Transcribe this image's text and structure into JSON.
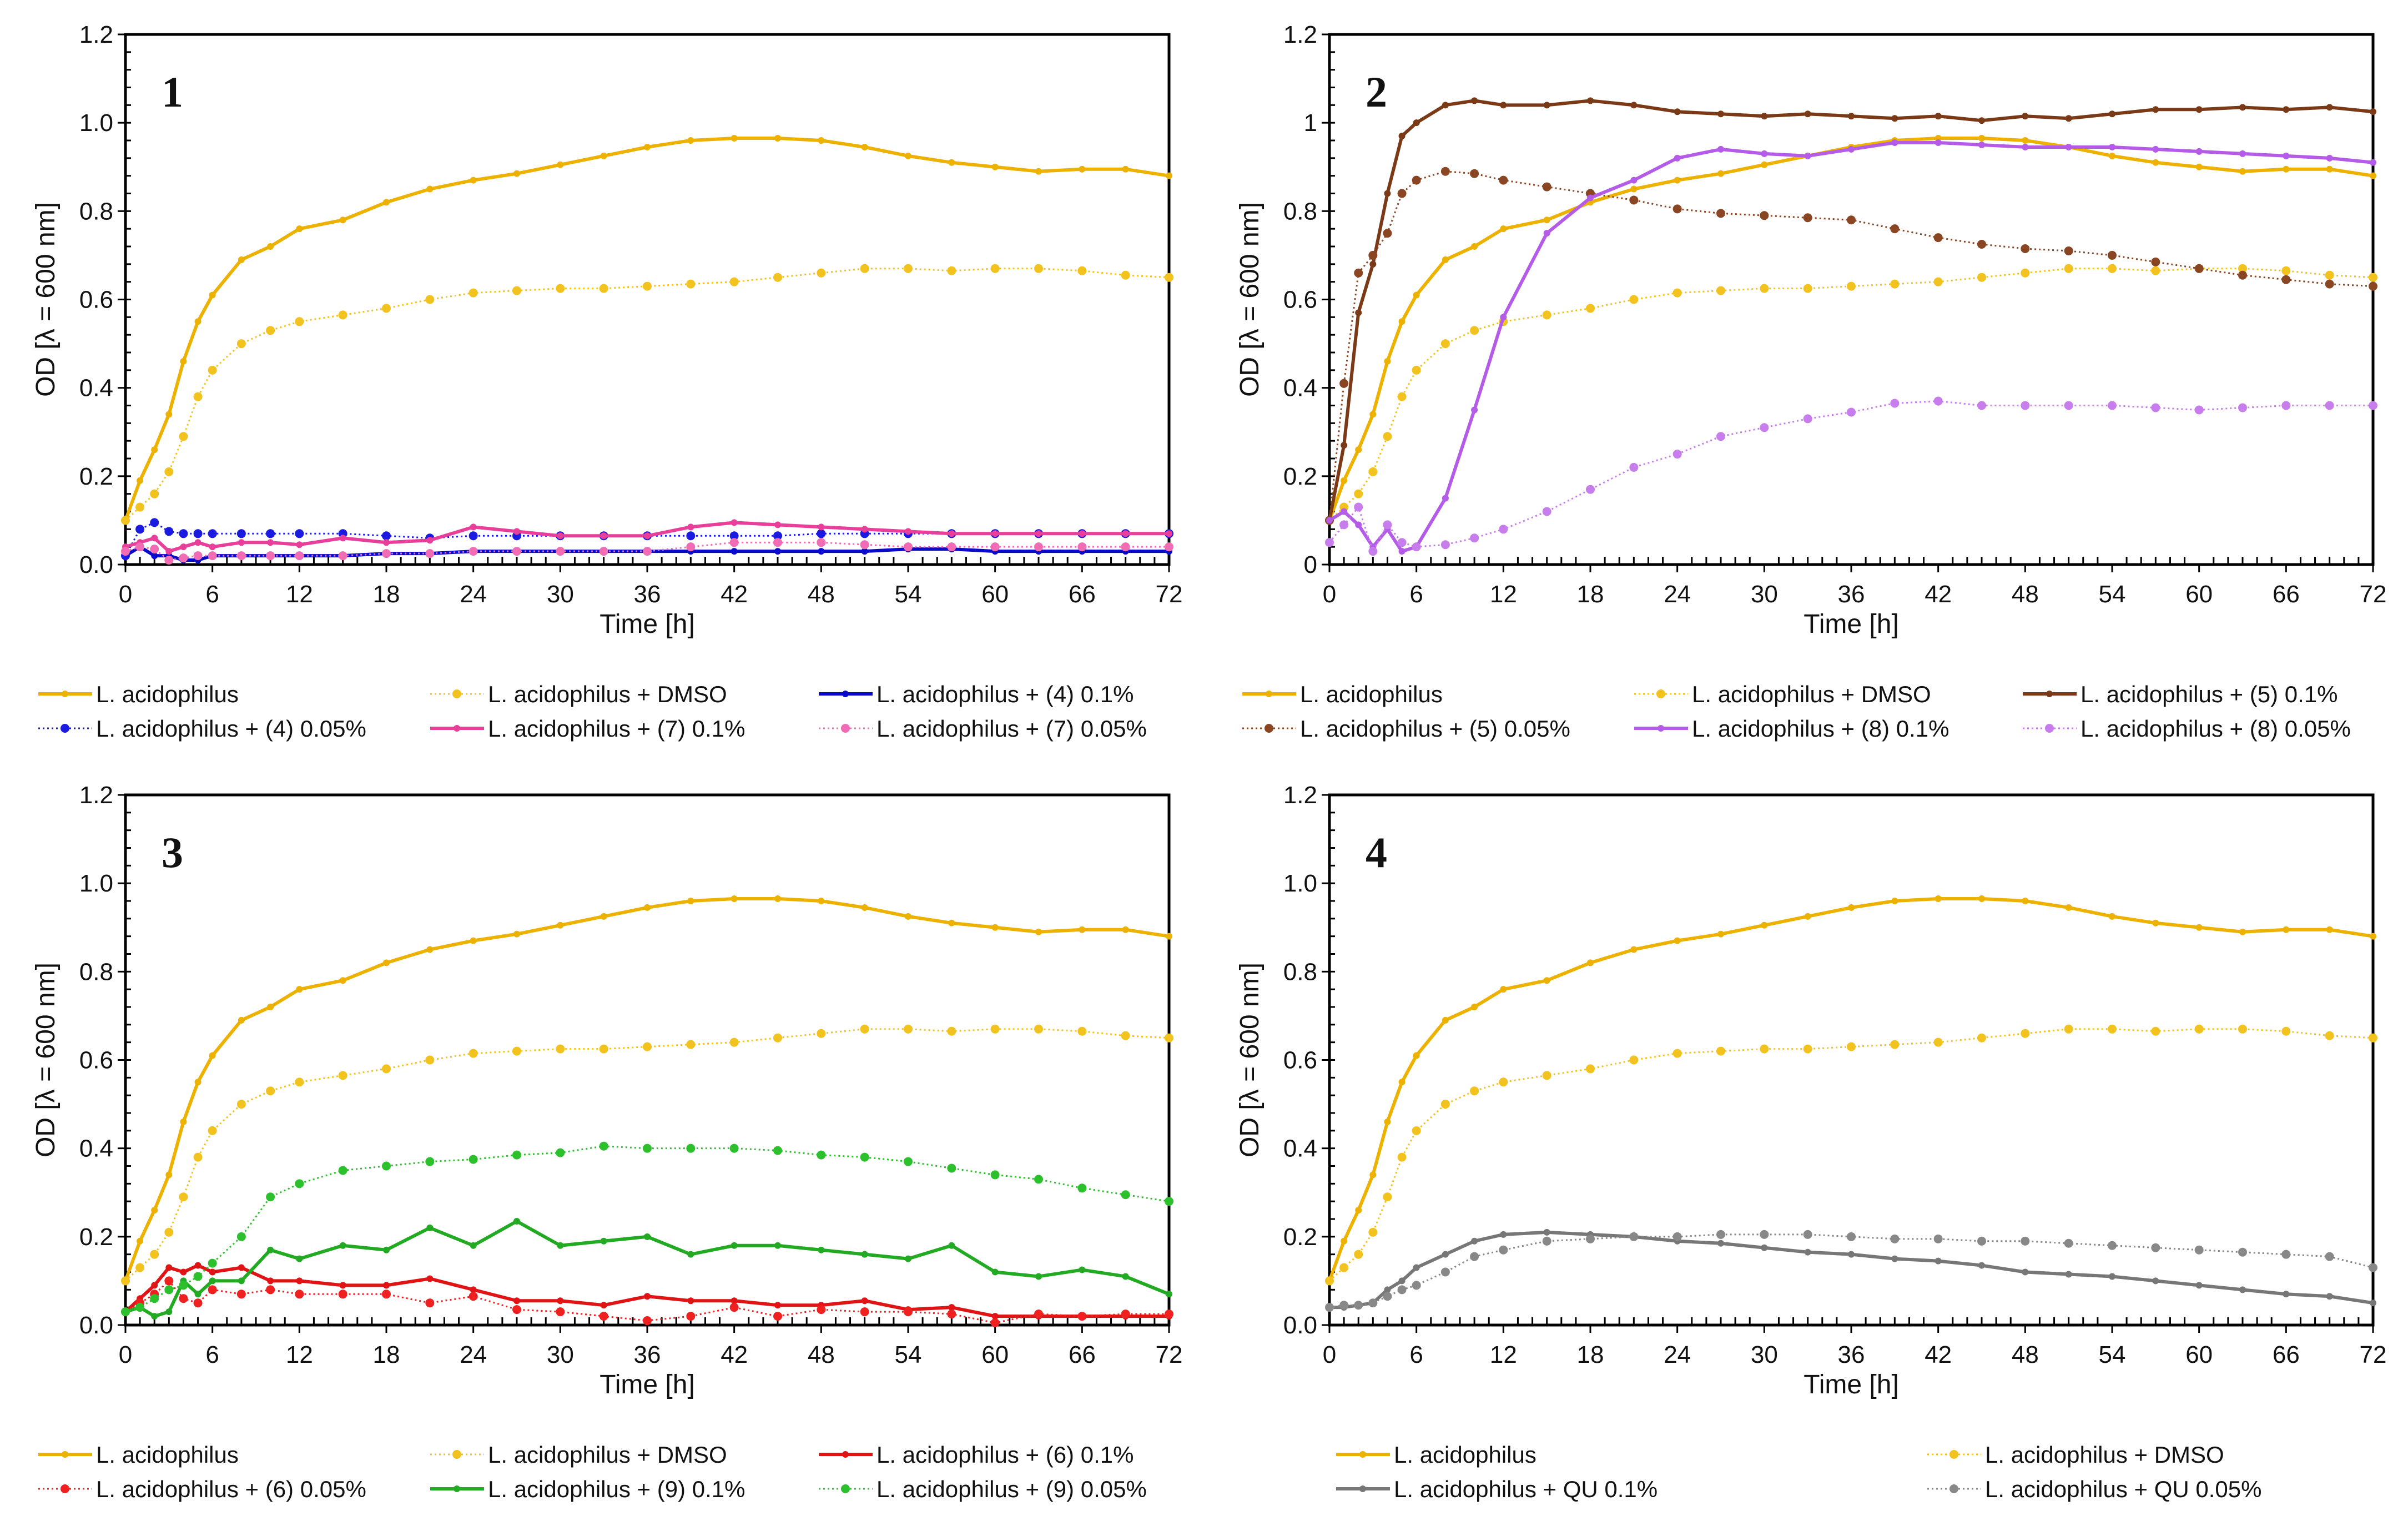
{
  "chart_data": [
    {
      "panel_label": "1",
      "type": "line",
      "xlabel": "Time [h]",
      "ylabel": "OD  [λ = 600 nm]",
      "xlim": [
        0,
        72
      ],
      "ylim": [
        0,
        1.2
      ],
      "xticks": [
        "0",
        "6",
        "12",
        "18",
        "24",
        "30",
        "36",
        "42",
        "48",
        "54",
        "60",
        "66",
        "72"
      ],
      "yticks": [
        "0.0",
        "0.2",
        "0.4",
        "0.6",
        "0.8",
        "1.0",
        "1.2"
      ],
      "legend_columns": 3,
      "legend_placement": "bottom",
      "x": [
        0,
        1,
        2,
        3,
        4,
        5,
        6,
        8,
        10,
        12,
        15,
        18,
        21,
        24,
        27,
        30,
        33,
        36,
        39,
        42,
        45,
        48,
        51,
        54,
        57,
        60,
        63,
        66,
        69,
        72
      ],
      "series": [
        {
          "name": "L. acidophilus",
          "color": "#EDB100",
          "style": "solid",
          "values": [
            0.1,
            0.19,
            0.26,
            0.34,
            0.46,
            0.55,
            0.61,
            0.69,
            0.72,
            0.76,
            0.78,
            0.82,
            0.85,
            0.87,
            0.885,
            0.905,
            0.925,
            0.945,
            0.96,
            0.965,
            0.965,
            0.96,
            0.945,
            0.925,
            0.91,
            0.9,
            0.89,
            0.895,
            0.895,
            0.88
          ]
        },
        {
          "name": "L. acidophilus + DMSO",
          "color": "#F2C21E",
          "style": "dotted",
          "values": [
            0.1,
            0.13,
            0.16,
            0.21,
            0.29,
            0.38,
            0.44,
            0.5,
            0.53,
            0.55,
            0.565,
            0.58,
            0.6,
            0.615,
            0.62,
            0.625,
            0.625,
            0.63,
            0.635,
            0.64,
            0.65,
            0.66,
            0.67,
            0.67,
            0.665,
            0.67,
            0.67,
            0.665,
            0.655,
            0.65
          ]
        },
        {
          "name": "L. acidophilus + (4) 0.1%",
          "color": "#0A0ACC",
          "style": "solid",
          "values": [
            0.02,
            0.04,
            0.02,
            0.02,
            0.01,
            0.01,
            0.02,
            0.02,
            0.02,
            0.02,
            0.02,
            0.025,
            0.025,
            0.03,
            0.03,
            0.03,
            0.03,
            0.03,
            0.03,
            0.03,
            0.03,
            0.03,
            0.03,
            0.035,
            0.035,
            0.03,
            0.03,
            0.03,
            0.03,
            0.03
          ]
        },
        {
          "name": "L. acidophilus + (4) 0.05%",
          "color": "#1A1AE0",
          "style": "dotted",
          "values": [
            0.02,
            0.08,
            0.095,
            0.075,
            0.07,
            0.07,
            0.07,
            0.07,
            0.07,
            0.07,
            0.07,
            0.065,
            0.06,
            0.065,
            0.065,
            0.065,
            0.065,
            0.065,
            0.065,
            0.065,
            0.065,
            0.07,
            0.07,
            0.07,
            0.07,
            0.07,
            0.07,
            0.07,
            0.07,
            0.07
          ]
        },
        {
          "name": "L. acidophilus + (7) 0.1%",
          "color": "#E8409A",
          "style": "solid",
          "values": [
            0.04,
            0.05,
            0.06,
            0.03,
            0.04,
            0.05,
            0.04,
            0.05,
            0.05,
            0.045,
            0.06,
            0.05,
            0.055,
            0.085,
            0.075,
            0.065,
            0.065,
            0.065,
            0.085,
            0.095,
            0.09,
            0.085,
            0.08,
            0.075,
            0.07,
            0.07,
            0.07,
            0.07,
            0.07,
            0.07
          ]
        },
        {
          "name": "L. acidophilus + (7) 0.05%",
          "color": "#F06CB4",
          "style": "dotted",
          "values": [
            0.03,
            0.04,
            0.035,
            0.01,
            0.015,
            0.02,
            0.02,
            0.02,
            0.02,
            0.02,
            0.02,
            0.025,
            0.025,
            0.03,
            0.03,
            0.03,
            0.03,
            0.03,
            0.04,
            0.05,
            0.05,
            0.05,
            0.045,
            0.04,
            0.04,
            0.04,
            0.04,
            0.04,
            0.04,
            0.04
          ]
        }
      ]
    },
    {
      "panel_label": "2",
      "type": "line",
      "xlabel": "Time [h]",
      "ylabel": "OD  [λ = 600 nm]",
      "xlim": [
        0,
        72
      ],
      "ylim": [
        0,
        1.2
      ],
      "xticks": [
        "0",
        "6",
        "12",
        "18",
        "24",
        "30",
        "36",
        "42",
        "48",
        "54",
        "60",
        "66",
        "72"
      ],
      "yticks": [
        "0",
        "0.2",
        "0.4",
        "0.6",
        "0.8",
        "1",
        "1.2"
      ],
      "legend_columns": 3,
      "legend_placement": "bottom",
      "x": [
        0,
        1,
        2,
        3,
        4,
        5,
        6,
        8,
        10,
        12,
        15,
        18,
        21,
        24,
        27,
        30,
        33,
        36,
        39,
        42,
        45,
        48,
        51,
        54,
        57,
        60,
        63,
        66,
        69,
        72
      ],
      "series": [
        {
          "name": "L. acidophilus",
          "color": "#EDB100",
          "style": "solid",
          "values": [
            0.1,
            0.19,
            0.26,
            0.34,
            0.46,
            0.55,
            0.61,
            0.69,
            0.72,
            0.76,
            0.78,
            0.82,
            0.85,
            0.87,
            0.885,
            0.905,
            0.925,
            0.945,
            0.96,
            0.965,
            0.965,
            0.96,
            0.945,
            0.925,
            0.91,
            0.9,
            0.89,
            0.895,
            0.895,
            0.88
          ]
        },
        {
          "name": "L. acidophilus + DMSO",
          "color": "#F2C21E",
          "style": "dotted",
          "values": [
            0.1,
            0.13,
            0.16,
            0.21,
            0.29,
            0.38,
            0.44,
            0.5,
            0.53,
            0.55,
            0.565,
            0.58,
            0.6,
            0.615,
            0.62,
            0.625,
            0.625,
            0.63,
            0.635,
            0.64,
            0.65,
            0.66,
            0.67,
            0.67,
            0.665,
            0.67,
            0.67,
            0.665,
            0.655,
            0.65
          ]
        },
        {
          "name": "L. acidophilus + (5) 0.1%",
          "color": "#7B3A17",
          "style": "solid",
          "values": [
            0.1,
            0.27,
            0.57,
            0.68,
            0.84,
            0.97,
            1.0,
            1.04,
            1.05,
            1.04,
            1.04,
            1.05,
            1.04,
            1.025,
            1.02,
            1.015,
            1.02,
            1.015,
            1.01,
            1.015,
            1.005,
            1.015,
            1.01,
            1.02,
            1.03,
            1.03,
            1.035,
            1.03,
            1.035,
            1.025
          ]
        },
        {
          "name": "L. acidophilus + (5) 0.05%",
          "color": "#8A4522",
          "style": "dotted",
          "values": [
            0.1,
            0.41,
            0.66,
            0.7,
            0.75,
            0.84,
            0.87,
            0.89,
            0.885,
            0.87,
            0.855,
            0.84,
            0.825,
            0.805,
            0.795,
            0.79,
            0.785,
            0.78,
            0.76,
            0.74,
            0.725,
            0.715,
            0.71,
            0.7,
            0.685,
            0.67,
            0.655,
            0.645,
            0.635,
            0.63
          ]
        },
        {
          "name": "L. acidophilus + (8) 0.1%",
          "color": "#B45CE8",
          "style": "solid",
          "values": [
            0.1,
            0.12,
            0.09,
            0.04,
            0.08,
            0.03,
            0.04,
            0.15,
            0.35,
            0.56,
            0.75,
            0.83,
            0.87,
            0.92,
            0.94,
            0.93,
            0.925,
            0.94,
            0.955,
            0.955,
            0.95,
            0.945,
            0.945,
            0.945,
            0.94,
            0.935,
            0.93,
            0.925,
            0.92,
            0.91
          ]
        },
        {
          "name": "L. acidophilus + (8) 0.05%",
          "color": "#C77DEB",
          "style": "dotted",
          "values": [
            0.05,
            0.09,
            0.13,
            0.03,
            0.09,
            0.05,
            0.04,
            0.045,
            0.06,
            0.08,
            0.12,
            0.17,
            0.22,
            0.25,
            0.29,
            0.31,
            0.33,
            0.345,
            0.365,
            0.37,
            0.36,
            0.36,
            0.36,
            0.36,
            0.355,
            0.35,
            0.355,
            0.36,
            0.36,
            0.36
          ]
        }
      ]
    },
    {
      "panel_label": "3",
      "type": "line",
      "xlabel": "Time [h]",
      "ylabel": "OD  [λ = 600 nm]",
      "xlim": [
        0,
        72
      ],
      "ylim": [
        0,
        1.2
      ],
      "xticks": [
        "0",
        "6",
        "12",
        "18",
        "24",
        "30",
        "36",
        "42",
        "48",
        "54",
        "60",
        "66",
        "72"
      ],
      "yticks": [
        "0.0",
        "0.2",
        "0.4",
        "0.6",
        "0.8",
        "1.0",
        "1.2"
      ],
      "legend_columns": 3,
      "legend_placement": "bottom",
      "x": [
        0,
        1,
        2,
        3,
        4,
        5,
        6,
        8,
        10,
        12,
        15,
        18,
        21,
        24,
        27,
        30,
        33,
        36,
        39,
        42,
        45,
        48,
        51,
        54,
        57,
        60,
        63,
        66,
        69,
        72
      ],
      "series": [
        {
          "name": "L. acidophilus",
          "color": "#EDB100",
          "style": "solid",
          "values": [
            0.1,
            0.19,
            0.26,
            0.34,
            0.46,
            0.55,
            0.61,
            0.69,
            0.72,
            0.76,
            0.78,
            0.82,
            0.85,
            0.87,
            0.885,
            0.905,
            0.925,
            0.945,
            0.96,
            0.965,
            0.965,
            0.96,
            0.945,
            0.925,
            0.91,
            0.9,
            0.89,
            0.895,
            0.895,
            0.88
          ]
        },
        {
          "name": "L. acidophilus + DMSO",
          "color": "#F2C21E",
          "style": "dotted",
          "values": [
            0.1,
            0.13,
            0.16,
            0.21,
            0.29,
            0.38,
            0.44,
            0.5,
            0.53,
            0.55,
            0.565,
            0.58,
            0.6,
            0.615,
            0.62,
            0.625,
            0.625,
            0.63,
            0.635,
            0.64,
            0.65,
            0.66,
            0.67,
            0.67,
            0.665,
            0.67,
            0.67,
            0.665,
            0.655,
            0.65
          ]
        },
        {
          "name": "L. acidophilus + (6) 0.1%",
          "color": "#E01414",
          "style": "solid",
          "values": [
            0.03,
            0.06,
            0.09,
            0.13,
            0.12,
            0.135,
            0.12,
            0.13,
            0.1,
            0.1,
            0.09,
            0.09,
            0.105,
            0.08,
            0.055,
            0.055,
            0.045,
            0.065,
            0.055,
            0.055,
            0.045,
            0.045,
            0.055,
            0.035,
            0.04,
            0.02,
            0.02,
            0.02,
            0.02,
            0.02
          ]
        },
        {
          "name": "L. acidophilus + (6) 0.05%",
          "color": "#EE2020",
          "style": "dotted",
          "values": [
            0.03,
            0.05,
            0.07,
            0.1,
            0.06,
            0.05,
            0.08,
            0.07,
            0.08,
            0.07,
            0.07,
            0.07,
            0.05,
            0.065,
            0.035,
            0.03,
            0.02,
            0.01,
            0.02,
            0.04,
            0.02,
            0.035,
            0.03,
            0.03,
            0.025,
            0.005,
            0.025,
            0.02,
            0.025,
            0.025
          ]
        },
        {
          "name": "L. acidophilus + (9) 0.1%",
          "color": "#22AA22",
          "style": "solid",
          "values": [
            0.03,
            0.04,
            0.02,
            0.03,
            0.1,
            0.07,
            0.1,
            0.1,
            0.17,
            0.15,
            0.18,
            0.17,
            0.22,
            0.18,
            0.235,
            0.18,
            0.19,
            0.2,
            0.16,
            0.18,
            0.18,
            0.17,
            0.16,
            0.15,
            0.18,
            0.12,
            0.11,
            0.125,
            0.11,
            0.07
          ]
        },
        {
          "name": "L. acidophilus + (9) 0.05%",
          "color": "#2CC02C",
          "style": "dotted",
          "values": [
            0.03,
            0.04,
            0.06,
            0.08,
            0.09,
            0.11,
            0.14,
            0.2,
            0.29,
            0.32,
            0.35,
            0.36,
            0.37,
            0.375,
            0.385,
            0.39,
            0.405,
            0.4,
            0.4,
            0.4,
            0.395,
            0.385,
            0.38,
            0.37,
            0.355,
            0.34,
            0.33,
            0.31,
            0.295,
            0.28
          ]
        }
      ]
    },
    {
      "panel_label": "4",
      "type": "line",
      "xlabel": "Time [h]",
      "ylabel": "OD  [λ = 600 nm]",
      "xlim": [
        0,
        72
      ],
      "ylim": [
        0,
        1.2
      ],
      "xticks": [
        "0",
        "6",
        "12",
        "18",
        "24",
        "30",
        "36",
        "42",
        "48",
        "54",
        "60",
        "66",
        "72"
      ],
      "yticks": [
        "0.0",
        "0.2",
        "0.4",
        "0.6",
        "0.8",
        "1.0",
        "1.2"
      ],
      "legend_columns": 2,
      "legend_placement": "bottom",
      "x": [
        0,
        1,
        2,
        3,
        4,
        5,
        6,
        8,
        10,
        12,
        15,
        18,
        21,
        24,
        27,
        30,
        33,
        36,
        39,
        42,
        45,
        48,
        51,
        54,
        57,
        60,
        63,
        66,
        69,
        72
      ],
      "series": [
        {
          "name": "L. acidophilus",
          "color": "#EDB100",
          "style": "solid",
          "values": [
            0.1,
            0.19,
            0.26,
            0.34,
            0.46,
            0.55,
            0.61,
            0.69,
            0.72,
            0.76,
            0.78,
            0.82,
            0.85,
            0.87,
            0.885,
            0.905,
            0.925,
            0.945,
            0.96,
            0.965,
            0.965,
            0.96,
            0.945,
            0.925,
            0.91,
            0.9,
            0.89,
            0.895,
            0.895,
            0.88
          ]
        },
        {
          "name": "L. acidophilus + DMSO",
          "color": "#F2C21E",
          "style": "dotted",
          "values": [
            0.1,
            0.13,
            0.16,
            0.21,
            0.29,
            0.38,
            0.44,
            0.5,
            0.53,
            0.55,
            0.565,
            0.58,
            0.6,
            0.615,
            0.62,
            0.625,
            0.625,
            0.63,
            0.635,
            0.64,
            0.65,
            0.66,
            0.67,
            0.67,
            0.665,
            0.67,
            0.67,
            0.665,
            0.655,
            0.65
          ]
        },
        {
          "name": "L. acidophilus + QU 0.1%",
          "color": "#777777",
          "style": "solid",
          "values": [
            0.04,
            0.04,
            0.045,
            0.05,
            0.08,
            0.1,
            0.13,
            0.16,
            0.19,
            0.205,
            0.21,
            0.205,
            0.2,
            0.19,
            0.185,
            0.175,
            0.165,
            0.16,
            0.15,
            0.145,
            0.135,
            0.12,
            0.115,
            0.11,
            0.1,
            0.09,
            0.08,
            0.07,
            0.065,
            0.05
          ]
        },
        {
          "name": "L. acidophilus + QU 0.05%",
          "color": "#888888",
          "style": "dotted",
          "values": [
            0.04,
            0.045,
            0.045,
            0.05,
            0.065,
            0.08,
            0.09,
            0.12,
            0.155,
            0.17,
            0.19,
            0.195,
            0.2,
            0.2,
            0.205,
            0.205,
            0.205,
            0.2,
            0.195,
            0.195,
            0.19,
            0.19,
            0.185,
            0.18,
            0.175,
            0.17,
            0.165,
            0.16,
            0.155,
            0.13
          ]
        }
      ]
    }
  ]
}
